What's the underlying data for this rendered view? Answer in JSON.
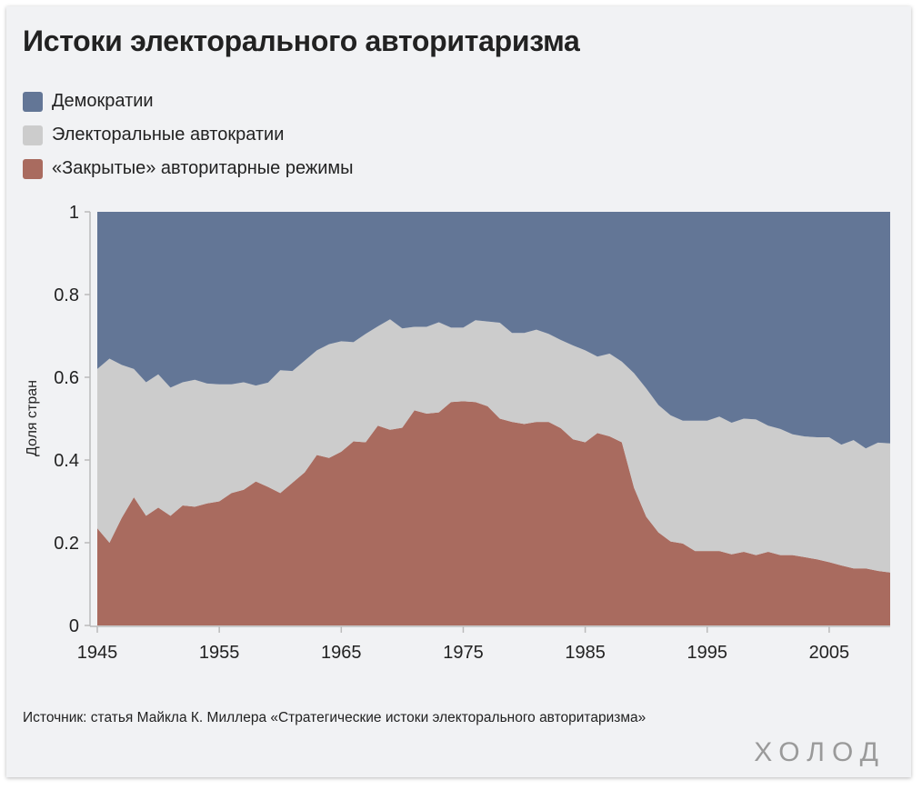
{
  "chart_data": {
    "type": "area",
    "stacked": true,
    "normalized": true,
    "title": "Истоки электорального авторитаризма",
    "xlabel": "",
    "ylabel": "Доля стран",
    "xlim": [
      1945,
      2010
    ],
    "ylim": [
      0,
      1
    ],
    "x_ticks": [
      "1945",
      "1955",
      "1965",
      "1975",
      "1985",
      "1995",
      "2005"
    ],
    "x_tick_values": [
      1945,
      1955,
      1965,
      1975,
      1985,
      1995,
      2005
    ],
    "y_ticks": [
      "0",
      "0.2",
      "0.4",
      "0.6",
      "0.8",
      "1"
    ],
    "y_tick_values": [
      0,
      0.2,
      0.4,
      0.6,
      0.8,
      1
    ],
    "x": [
      1945,
      1946,
      1947,
      1948,
      1949,
      1950,
      1951,
      1952,
      1953,
      1954,
      1955,
      1956,
      1957,
      1958,
      1959,
      1960,
      1961,
      1962,
      1963,
      1964,
      1965,
      1966,
      1967,
      1968,
      1969,
      1970,
      1971,
      1972,
      1973,
      1974,
      1975,
      1976,
      1977,
      1978,
      1979,
      1980,
      1981,
      1982,
      1983,
      1984,
      1985,
      1986,
      1987,
      1988,
      1989,
      1990,
      1991,
      1992,
      1993,
      1994,
      1995,
      1996,
      1997,
      1998,
      1999,
      2000,
      2001,
      2002,
      2003,
      2004,
      2005,
      2006,
      2007,
      2008,
      2009,
      2010
    ],
    "series": [
      {
        "name": "«Закрытые» авторитарные режимы",
        "color": "#a96b5f",
        "values": [
          0.235,
          0.2,
          0.26,
          0.31,
          0.265,
          0.285,
          0.265,
          0.29,
          0.287,
          0.295,
          0.3,
          0.32,
          0.328,
          0.348,
          0.335,
          0.32,
          0.345,
          0.37,
          0.412,
          0.405,
          0.42,
          0.445,
          0.443,
          0.483,
          0.473,
          0.478,
          0.52,
          0.512,
          0.515,
          0.54,
          0.542,
          0.54,
          0.53,
          0.5,
          0.492,
          0.487,
          0.492,
          0.492,
          0.477,
          0.45,
          0.443,
          0.465,
          0.457,
          0.443,
          0.333,
          0.263,
          0.225,
          0.203,
          0.198,
          0.18,
          0.18,
          0.18,
          0.172,
          0.178,
          0.17,
          0.178,
          0.17,
          0.17,
          0.165,
          0.16,
          0.153,
          0.145,
          0.138,
          0.138,
          0.132,
          0.128
        ]
      },
      {
        "name": "Электоральные автократии",
        "color": "#cccccc",
        "values": [
          0.385,
          0.445,
          0.37,
          0.31,
          0.323,
          0.322,
          0.31,
          0.298,
          0.307,
          0.29,
          0.283,
          0.263,
          0.26,
          0.232,
          0.252,
          0.297,
          0.27,
          0.27,
          0.253,
          0.275,
          0.267,
          0.24,
          0.262,
          0.24,
          0.267,
          0.24,
          0.202,
          0.21,
          0.218,
          0.18,
          0.178,
          0.198,
          0.205,
          0.232,
          0.215,
          0.22,
          0.223,
          0.213,
          0.213,
          0.227,
          0.222,
          0.185,
          0.2,
          0.195,
          0.277,
          0.31,
          0.308,
          0.305,
          0.297,
          0.315,
          0.315,
          0.325,
          0.318,
          0.322,
          0.328,
          0.305,
          0.305,
          0.292,
          0.292,
          0.295,
          0.302,
          0.292,
          0.31,
          0.29,
          0.31,
          0.312
        ]
      },
      {
        "name": "Демократии",
        "color": "#637696",
        "values": [
          0.38,
          0.355,
          0.37,
          0.38,
          0.412,
          0.393,
          0.425,
          0.412,
          0.406,
          0.415,
          0.417,
          0.417,
          0.412,
          0.42,
          0.413,
          0.383,
          0.385,
          0.36,
          0.335,
          0.32,
          0.313,
          0.315,
          0.295,
          0.277,
          0.26,
          0.282,
          0.278,
          0.278,
          0.267,
          0.28,
          0.28,
          0.262,
          0.265,
          0.268,
          0.293,
          0.293,
          0.285,
          0.295,
          0.31,
          0.323,
          0.335,
          0.35,
          0.343,
          0.362,
          0.39,
          0.427,
          0.467,
          0.492,
          0.505,
          0.505,
          0.505,
          0.495,
          0.51,
          0.5,
          0.502,
          0.517,
          0.525,
          0.538,
          0.543,
          0.545,
          0.545,
          0.563,
          0.552,
          0.572,
          0.558,
          0.56
        ]
      }
    ],
    "legend": [
      {
        "label": "Демократии",
        "color": "#637696"
      },
      {
        "label": "Электоральные автократии",
        "color": "#cccccc"
      },
      {
        "label": "«Закрытые» авторитарные режимы",
        "color": "#a96b5f"
      }
    ]
  },
  "source_text": "Источник: статья Майкла К. Миллера «Стратегические истоки электорального авторитаризма»",
  "logo_text": "ХОЛОД"
}
